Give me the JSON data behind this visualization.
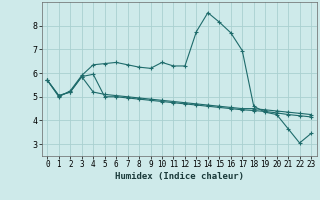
{
  "xlabel": "Humidex (Indice chaleur)",
  "background_color": "#ceeaea",
  "grid_color": "#aad0d0",
  "line_color": "#1e6b6b",
  "xlim": [
    -0.5,
    23.5
  ],
  "ylim": [
    2.5,
    9.0
  ],
  "xticks": [
    0,
    1,
    2,
    3,
    4,
    5,
    6,
    7,
    8,
    9,
    10,
    11,
    12,
    13,
    14,
    15,
    16,
    17,
    18,
    19,
    20,
    21,
    22,
    23
  ],
  "yticks": [
    3,
    4,
    5,
    6,
    7,
    8
  ],
  "line1_x": [
    0,
    1,
    2,
    3,
    4,
    5,
    6,
    7,
    8,
    9,
    10,
    11,
    12,
    13,
    14,
    15,
    16,
    17,
    18,
    19,
    20,
    21,
    22,
    23
  ],
  "line1_y": [
    5.7,
    5.0,
    5.25,
    5.9,
    6.35,
    6.4,
    6.45,
    6.35,
    6.25,
    6.2,
    6.45,
    6.3,
    6.3,
    7.75,
    8.55,
    8.15,
    7.7,
    6.95,
    4.6,
    4.35,
    4.25,
    3.65,
    3.05,
    3.45
  ],
  "line2_x": [
    0,
    1,
    2,
    3,
    4,
    5,
    6,
    7,
    8,
    9,
    10,
    11,
    12,
    13,
    14,
    15,
    16,
    17,
    18,
    19,
    20,
    21,
    22,
    23
  ],
  "line2_y": [
    5.7,
    5.05,
    5.2,
    5.85,
    5.2,
    5.1,
    5.05,
    5.0,
    4.95,
    4.9,
    4.85,
    4.8,
    4.75,
    4.7,
    4.65,
    4.6,
    4.55,
    4.5,
    4.5,
    4.45,
    4.4,
    4.35,
    4.3,
    4.25
  ],
  "line3_x": [
    0,
    1,
    2,
    3,
    4,
    5,
    6,
    7,
    8,
    9,
    10,
    11,
    12,
    13,
    14,
    15,
    16,
    17,
    18,
    19,
    20,
    21,
    22,
    23
  ],
  "line3_y": [
    5.7,
    5.05,
    5.2,
    5.85,
    5.95,
    5.0,
    5.0,
    4.95,
    4.9,
    4.85,
    4.8,
    4.75,
    4.7,
    4.65,
    4.6,
    4.55,
    4.5,
    4.45,
    4.42,
    4.38,
    4.32,
    4.25,
    4.2,
    4.15
  ]
}
